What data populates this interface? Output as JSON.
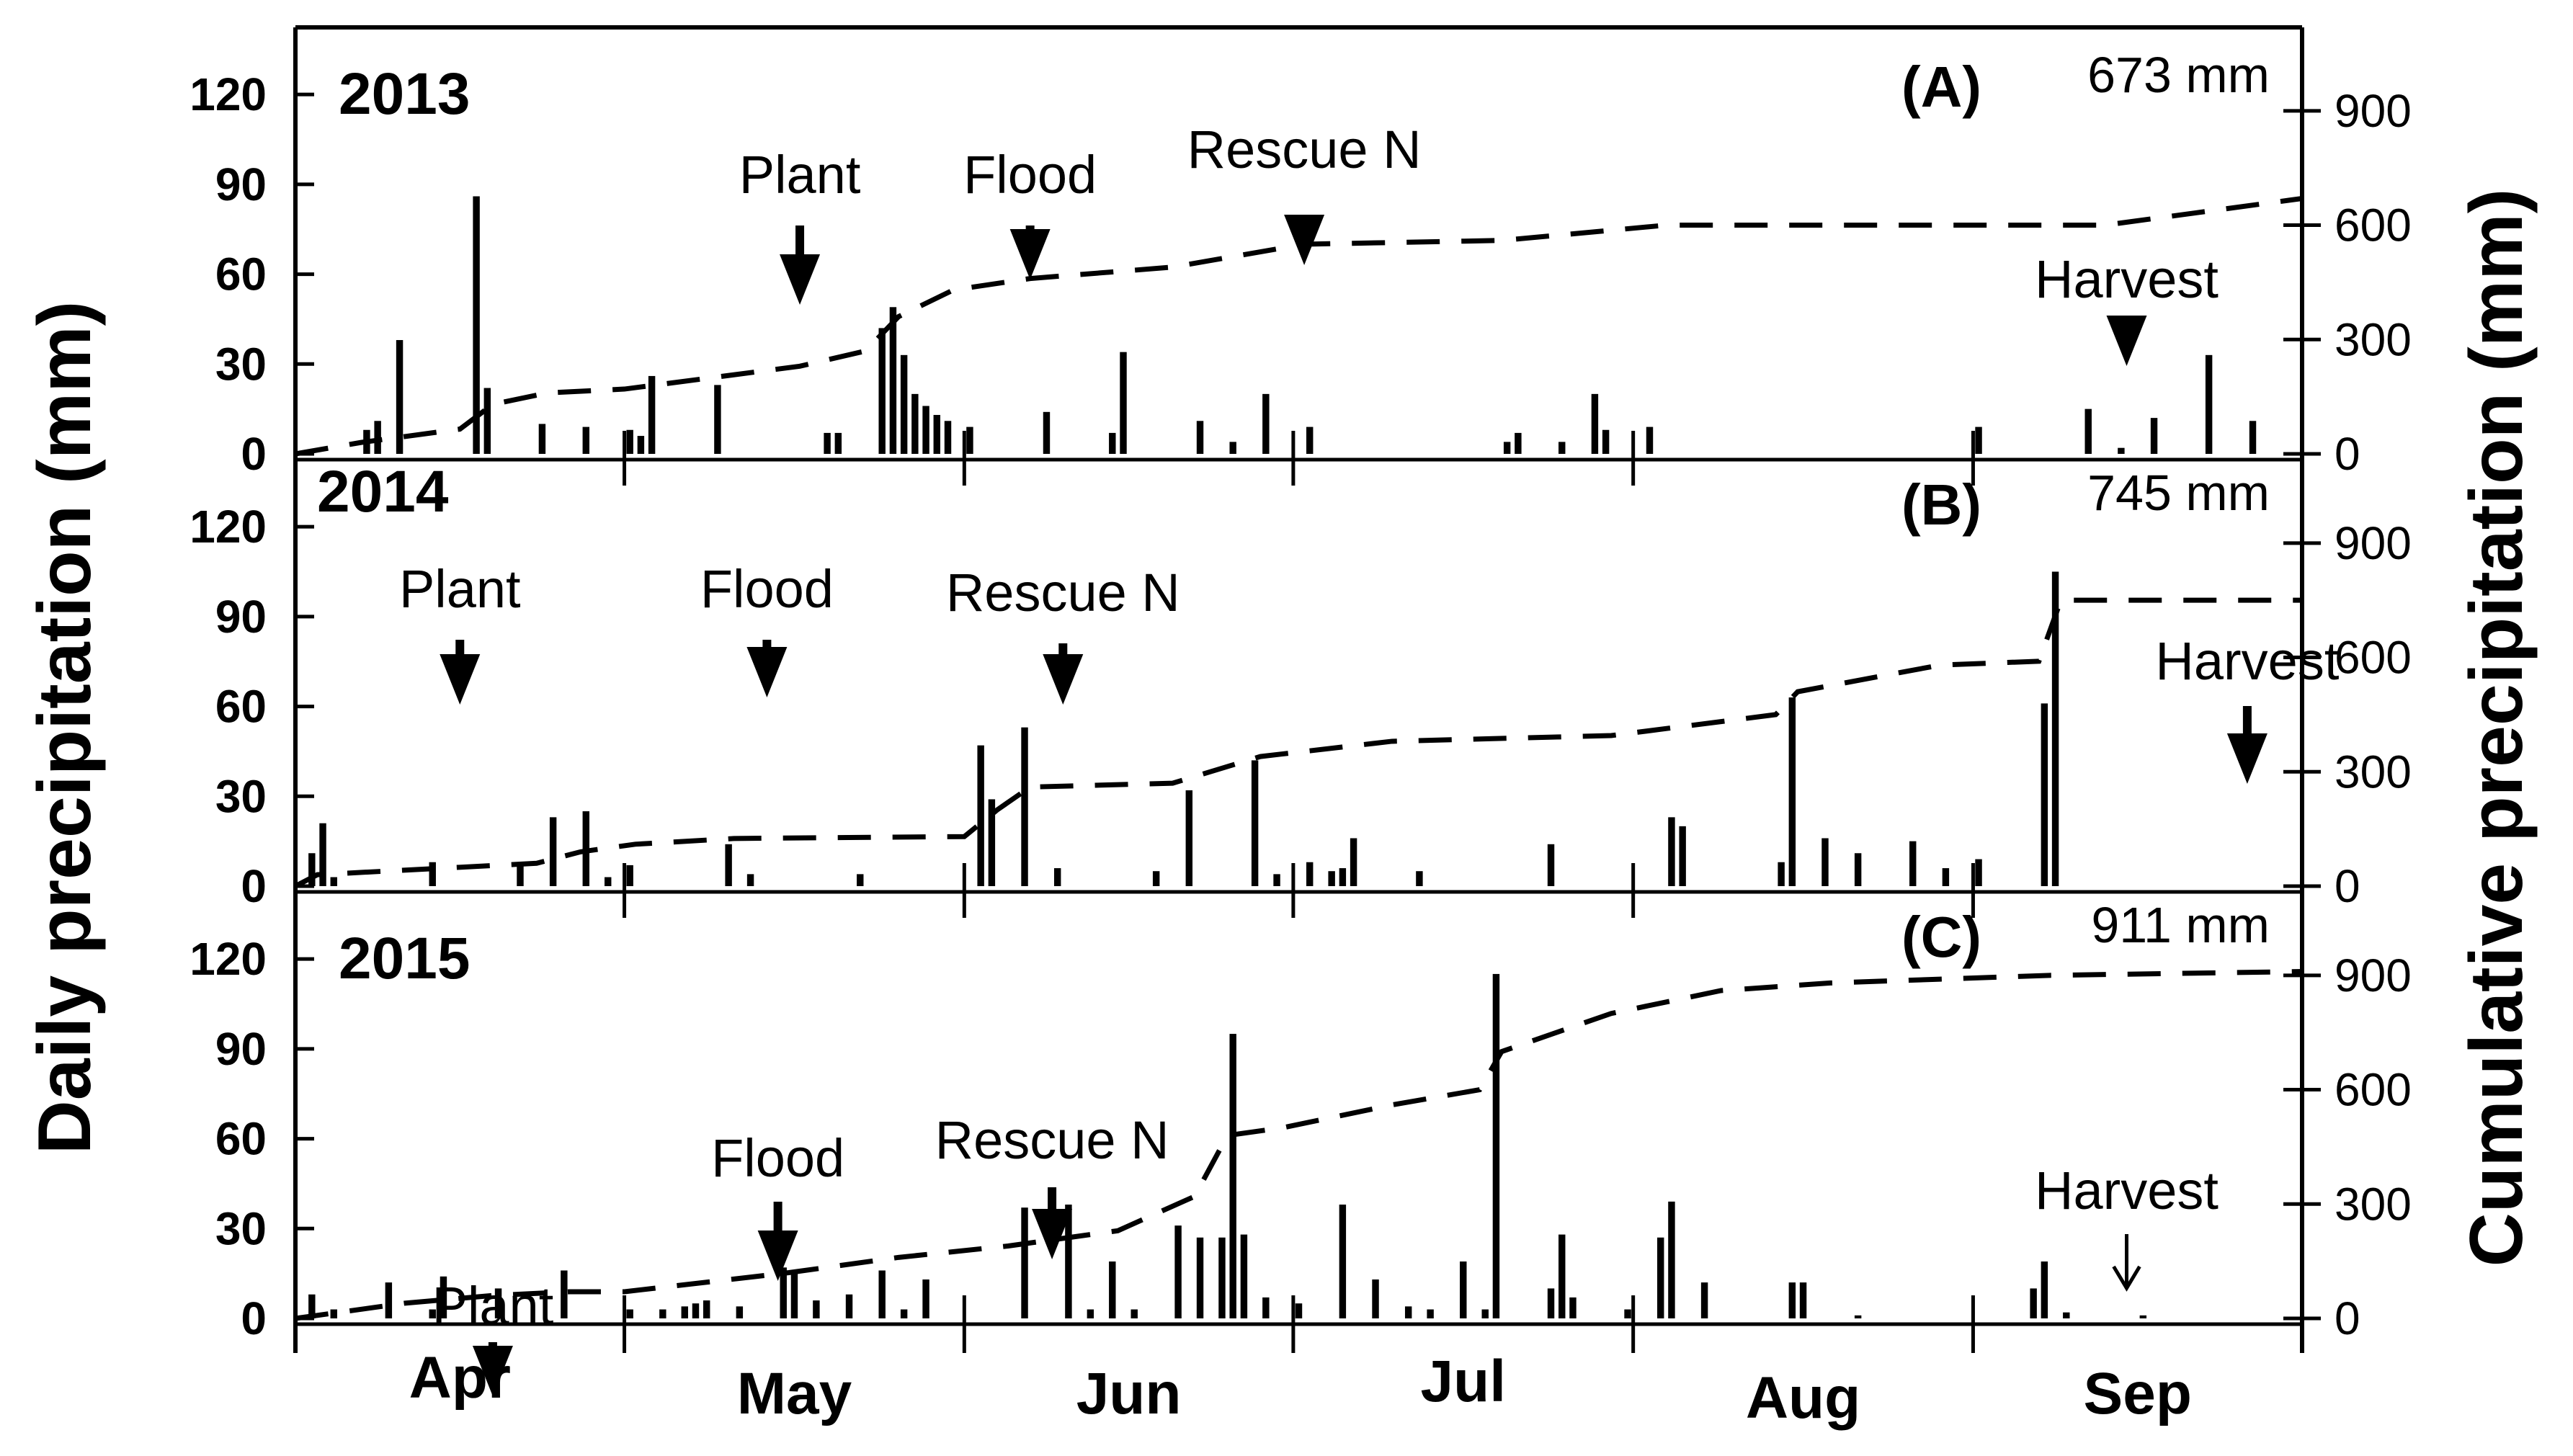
{
  "chart_data": {
    "type": "bar",
    "left_axis_label": "Daily precipitation (mm)",
    "right_axis_label": "Cumulative precipitation (mm)",
    "left_ticks": [
      0,
      30,
      60,
      90,
      120
    ],
    "right_ticks": [
      0,
      300,
      600,
      900
    ],
    "left_ylim": [
      0,
      140
    ],
    "right_ylim": [
      0,
      1100
    ],
    "x_range_days": [
      0,
      183
    ],
    "months": [
      "Apr",
      "May",
      "Jun",
      "Jul",
      "Aug",
      "Sep"
    ],
    "month_boundaries_days": [
      0,
      30,
      61,
      91,
      122,
      153,
      183
    ],
    "panels": [
      {
        "letter": "(A)",
        "year": "2013",
        "total_label": "673 mm",
        "events": [
          {
            "label": "Plant",
            "day": 46,
            "arrow": "bold"
          },
          {
            "label": "Flood",
            "day": 67,
            "arrow": "bold"
          },
          {
            "label": "Rescue N",
            "day": 92,
            "arrow": "bold"
          },
          {
            "label": "Harvest",
            "day": 167,
            "arrow": "bold"
          }
        ],
        "daily_bars": [
          {
            "day": 6,
            "mm": 8
          },
          {
            "day": 7,
            "mm": 11
          },
          {
            "day": 9,
            "mm": 38
          },
          {
            "day": 16,
            "mm": 86
          },
          {
            "day": 17,
            "mm": 22
          },
          {
            "day": 22,
            "mm": 10
          },
          {
            "day": 26,
            "mm": 9
          },
          {
            "day": 30,
            "mm": 8
          },
          {
            "day": 31,
            "mm": 6
          },
          {
            "day": 32,
            "mm": 26
          },
          {
            "day": 38,
            "mm": 23
          },
          {
            "day": 48,
            "mm": 7
          },
          {
            "day": 49,
            "mm": 7
          },
          {
            "day": 53,
            "mm": 42
          },
          {
            "day": 54,
            "mm": 49
          },
          {
            "day": 55,
            "mm": 33
          },
          {
            "day": 56,
            "mm": 20
          },
          {
            "day": 57,
            "mm": 16
          },
          {
            "day": 58,
            "mm": 13
          },
          {
            "day": 59,
            "mm": 11
          },
          {
            "day": 61,
            "mm": 9
          },
          {
            "day": 68,
            "mm": 14
          },
          {
            "day": 74,
            "mm": 7
          },
          {
            "day": 75,
            "mm": 34
          },
          {
            "day": 82,
            "mm": 11
          },
          {
            "day": 85,
            "mm": 4
          },
          {
            "day": 88,
            "mm": 20
          },
          {
            "day": 92,
            "mm": 9
          },
          {
            "day": 110,
            "mm": 4
          },
          {
            "day": 111,
            "mm": 7
          },
          {
            "day": 115,
            "mm": 4
          },
          {
            "day": 118,
            "mm": 20
          },
          {
            "day": 119,
            "mm": 8
          },
          {
            "day": 123,
            "mm": 9
          },
          {
            "day": 153,
            "mm": 9
          },
          {
            "day": 163,
            "mm": 15
          },
          {
            "day": 166,
            "mm": 2
          },
          {
            "day": 169,
            "mm": 12
          },
          {
            "day": 174,
            "mm": 33
          },
          {
            "day": 178,
            "mm": 11
          }
        ],
        "cumulative": [
          {
            "day": 0,
            "mm": 0
          },
          {
            "day": 6,
            "mm": 30
          },
          {
            "day": 15,
            "mm": 65
          },
          {
            "day": 18,
            "mm": 130
          },
          {
            "day": 23,
            "mm": 160
          },
          {
            "day": 30,
            "mm": 170
          },
          {
            "day": 38,
            "mm": 200
          },
          {
            "day": 46,
            "mm": 230
          },
          {
            "day": 52,
            "mm": 270
          },
          {
            "day": 55,
            "mm": 360
          },
          {
            "day": 60,
            "mm": 430
          },
          {
            "day": 67,
            "mm": 460
          },
          {
            "day": 80,
            "mm": 490
          },
          {
            "day": 92,
            "mm": 550
          },
          {
            "day": 110,
            "mm": 560
          },
          {
            "day": 125,
            "mm": 600
          },
          {
            "day": 165,
            "mm": 600
          },
          {
            "day": 183,
            "mm": 670
          }
        ]
      },
      {
        "letter": "(B)",
        "year": "2014",
        "total_label": "745 mm",
        "events": [
          {
            "label": "Plant",
            "day": 15,
            "arrow": "bold"
          },
          {
            "label": "Flood",
            "day": 43,
            "arrow": "bold"
          },
          {
            "label": "Rescue N",
            "day": 70,
            "arrow": "bold"
          },
          {
            "label": "Harvest",
            "day": 178,
            "arrow": "bold"
          }
        ],
        "daily_bars": [
          {
            "day": 1,
            "mm": 11
          },
          {
            "day": 2,
            "mm": 21
          },
          {
            "day": 3,
            "mm": 3
          },
          {
            "day": 12,
            "mm": 8
          },
          {
            "day": 20,
            "mm": 8
          },
          {
            "day": 23,
            "mm": 23
          },
          {
            "day": 26,
            "mm": 25
          },
          {
            "day": 28,
            "mm": 3
          },
          {
            "day": 30,
            "mm": 7
          },
          {
            "day": 39,
            "mm": 14
          },
          {
            "day": 41,
            "mm": 4
          },
          {
            "day": 51,
            "mm": 4
          },
          {
            "day": 62,
            "mm": 47
          },
          {
            "day": 63,
            "mm": 29
          },
          {
            "day": 66,
            "mm": 53
          },
          {
            "day": 69,
            "mm": 6
          },
          {
            "day": 78,
            "mm": 5
          },
          {
            "day": 81,
            "mm": 32
          },
          {
            "day": 87,
            "mm": 42
          },
          {
            "day": 89,
            "mm": 4
          },
          {
            "day": 92,
            "mm": 8
          },
          {
            "day": 94,
            "mm": 5
          },
          {
            "day": 95,
            "mm": 6
          },
          {
            "day": 96,
            "mm": 16
          },
          {
            "day": 102,
            "mm": 5
          },
          {
            "day": 114,
            "mm": 14
          },
          {
            "day": 125,
            "mm": 23
          },
          {
            "day": 126,
            "mm": 20
          },
          {
            "day": 135,
            "mm": 8
          },
          {
            "day": 136,
            "mm": 63
          },
          {
            "day": 139,
            "mm": 16
          },
          {
            "day": 142,
            "mm": 11
          },
          {
            "day": 147,
            "mm": 15
          },
          {
            "day": 150,
            "mm": 6
          },
          {
            "day": 153,
            "mm": 9
          },
          {
            "day": 159,
            "mm": 61
          },
          {
            "day": 160,
            "mm": 105
          }
        ],
        "cumulative": [
          {
            "day": 0,
            "mm": 0
          },
          {
            "day": 2,
            "mm": 30
          },
          {
            "day": 22,
            "mm": 60
          },
          {
            "day": 26,
            "mm": 90
          },
          {
            "day": 31,
            "mm": 110
          },
          {
            "day": 40,
            "mm": 125
          },
          {
            "day": 61,
            "mm": 130
          },
          {
            "day": 64,
            "mm": 200
          },
          {
            "day": 67,
            "mm": 260
          },
          {
            "day": 80,
            "mm": 270
          },
          {
            "day": 88,
            "mm": 340
          },
          {
            "day": 100,
            "mm": 380
          },
          {
            "day": 120,
            "mm": 395
          },
          {
            "day": 135,
            "mm": 450
          },
          {
            "day": 137,
            "mm": 510
          },
          {
            "day": 150,
            "mm": 580
          },
          {
            "day": 159,
            "mm": 590
          },
          {
            "day": 161,
            "mm": 750
          },
          {
            "day": 183,
            "mm": 750
          }
        ]
      },
      {
        "letter": "(C)",
        "year": "2015",
        "total_label": "911 mm",
        "events": [
          {
            "label": "Plant",
            "day": 18,
            "arrow": "bold"
          },
          {
            "label": "Flood",
            "day": 44,
            "arrow": "bold"
          },
          {
            "label": "Rescue N",
            "day": 69,
            "arrow": "bold"
          },
          {
            "label": "Harvest",
            "day": 167,
            "arrow": "thin"
          }
        ],
        "daily_bars": [
          {
            "day": 1,
            "mm": 8
          },
          {
            "day": 3,
            "mm": 3
          },
          {
            "day": 8,
            "mm": 12
          },
          {
            "day": 12,
            "mm": 3
          },
          {
            "day": 13,
            "mm": 14
          },
          {
            "day": 18,
            "mm": 10
          },
          {
            "day": 24,
            "mm": 16
          },
          {
            "day": 30,
            "mm": 3
          },
          {
            "day": 33,
            "mm": 3
          },
          {
            "day": 35,
            "mm": 4
          },
          {
            "day": 36,
            "mm": 5
          },
          {
            "day": 37,
            "mm": 6
          },
          {
            "day": 40,
            "mm": 4
          },
          {
            "day": 44,
            "mm": 17
          },
          {
            "day": 45,
            "mm": 15
          },
          {
            "day": 47,
            "mm": 6
          },
          {
            "day": 50,
            "mm": 8
          },
          {
            "day": 53,
            "mm": 16
          },
          {
            "day": 55,
            "mm": 3
          },
          {
            "day": 57,
            "mm": 13
          },
          {
            "day": 66,
            "mm": 37
          },
          {
            "day": 70,
            "mm": 38
          },
          {
            "day": 72,
            "mm": 3
          },
          {
            "day": 74,
            "mm": 19
          },
          {
            "day": 76,
            "mm": 3
          },
          {
            "day": 80,
            "mm": 31
          },
          {
            "day": 82,
            "mm": 27
          },
          {
            "day": 84,
            "mm": 27
          },
          {
            "day": 85,
            "mm": 95
          },
          {
            "day": 86,
            "mm": 28
          },
          {
            "day": 88,
            "mm": 7
          },
          {
            "day": 91,
            "mm": 5
          },
          {
            "day": 95,
            "mm": 38
          },
          {
            "day": 98,
            "mm": 13
          },
          {
            "day": 101,
            "mm": 4
          },
          {
            "day": 103,
            "mm": 3
          },
          {
            "day": 106,
            "mm": 19
          },
          {
            "day": 108,
            "mm": 3
          },
          {
            "day": 109,
            "mm": 115
          },
          {
            "day": 114,
            "mm": 10
          },
          {
            "day": 115,
            "mm": 28
          },
          {
            "day": 116,
            "mm": 7
          },
          {
            "day": 121,
            "mm": 3
          },
          {
            "day": 124,
            "mm": 27
          },
          {
            "day": 125,
            "mm": 39
          },
          {
            "day": 128,
            "mm": 12
          },
          {
            "day": 136,
            "mm": 12
          },
          {
            "day": 137,
            "mm": 12
          },
          {
            "day": 142,
            "mm": 1
          },
          {
            "day": 158,
            "mm": 10
          },
          {
            "day": 159,
            "mm": 19
          },
          {
            "day": 161,
            "mm": 2
          },
          {
            "day": 168,
            "mm": 1
          }
        ],
        "cumulative": [
          {
            "day": 0,
            "mm": 0
          },
          {
            "day": 10,
            "mm": 40
          },
          {
            "day": 18,
            "mm": 60
          },
          {
            "day": 25,
            "mm": 70
          },
          {
            "day": 30,
            "mm": 70
          },
          {
            "day": 45,
            "mm": 120
          },
          {
            "day": 55,
            "mm": 160
          },
          {
            "day": 65,
            "mm": 190
          },
          {
            "day": 75,
            "mm": 230
          },
          {
            "day": 82,
            "mm": 320
          },
          {
            "day": 85,
            "mm": 480
          },
          {
            "day": 90,
            "mm": 500
          },
          {
            "day": 100,
            "mm": 560
          },
          {
            "day": 108,
            "mm": 600
          },
          {
            "day": 110,
            "mm": 700
          },
          {
            "day": 120,
            "mm": 800
          },
          {
            "day": 130,
            "mm": 860
          },
          {
            "day": 140,
            "mm": 880
          },
          {
            "day": 150,
            "mm": 890
          },
          {
            "day": 160,
            "mm": 900
          },
          {
            "day": 183,
            "mm": 910
          }
        ]
      }
    ]
  }
}
